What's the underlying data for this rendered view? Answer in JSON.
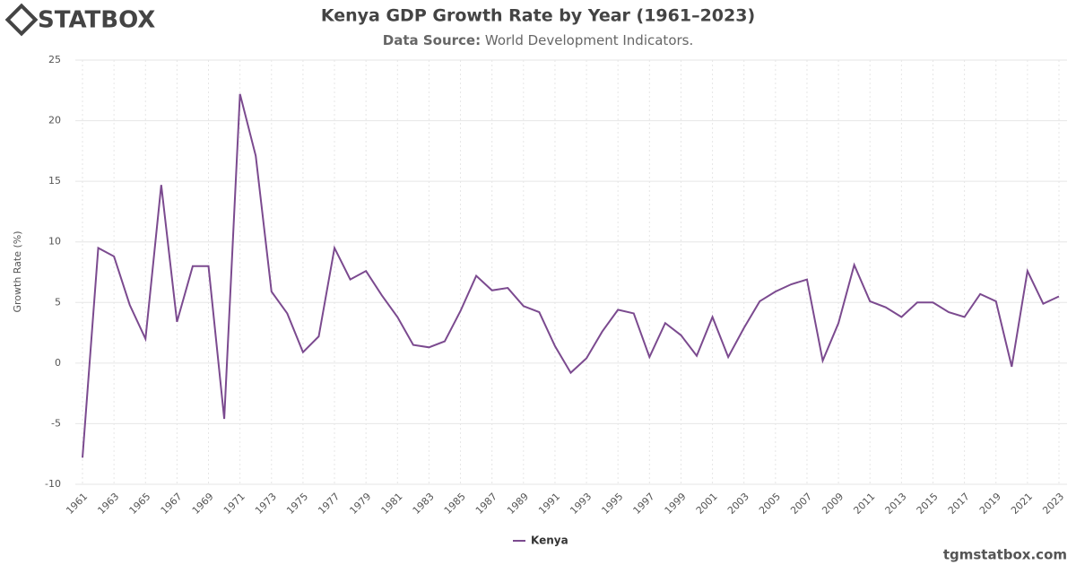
{
  "brand": "STATBOX",
  "watermark": "tgmstatbox.com",
  "chart_data": {
    "type": "line",
    "title": "Kenya GDP Growth Rate by Year (1961–2023)",
    "subtitle_label": "Data Source:",
    "subtitle": "World Development Indicators.",
    "y_label": "Growth Rate (%)",
    "x": [
      1961,
      1962,
      1963,
      1964,
      1965,
      1966,
      1967,
      1968,
      1969,
      1970,
      1971,
      1972,
      1973,
      1974,
      1975,
      1976,
      1977,
      1978,
      1979,
      1980,
      1981,
      1982,
      1983,
      1984,
      1985,
      1986,
      1987,
      1988,
      1989,
      1990,
      1991,
      1992,
      1993,
      1994,
      1995,
      1996,
      1997,
      1998,
      1999,
      2000,
      2001,
      2002,
      2003,
      2004,
      2005,
      2006,
      2007,
      2008,
      2009,
      2010,
      2011,
      2012,
      2013,
      2014,
      2015,
      2016,
      2017,
      2018,
      2019,
      2020,
      2021,
      2022,
      2023
    ],
    "series": [
      {
        "name": "Kenya",
        "color": "#7b4a8f",
        "values": [
          -7.8,
          9.5,
          8.8,
          4.8,
          2.0,
          14.7,
          3.4,
          8.0,
          8.0,
          -4.6,
          22.2,
          17.1,
          5.9,
          4.1,
          0.9,
          2.2,
          9.5,
          6.9,
          7.6,
          5.6,
          3.8,
          1.5,
          1.3,
          1.8,
          4.3,
          7.2,
          6.0,
          6.2,
          4.7,
          4.2,
          1.4,
          -0.8,
          0.4,
          2.6,
          4.4,
          4.1,
          0.5,
          3.3,
          2.3,
          0.6,
          3.8,
          0.5,
          2.9,
          5.1,
          5.9,
          6.5,
          6.9,
          0.2,
          3.3,
          8.1,
          5.1,
          4.6,
          3.8,
          5.0,
          5.0,
          4.2,
          3.8,
          5.7,
          5.1,
          -0.3,
          7.6,
          4.9,
          5.5
        ]
      }
    ],
    "xlim": [
      1961,
      2023
    ],
    "xticks": [
      1961,
      1963,
      1965,
      1967,
      1969,
      1971,
      1973,
      1975,
      1977,
      1979,
      1981,
      1983,
      1985,
      1987,
      1989,
      1991,
      1993,
      1995,
      1997,
      1999,
      2001,
      2003,
      2005,
      2007,
      2009,
      2011,
      2013,
      2015,
      2017,
      2019,
      2021,
      2023
    ],
    "ylim": [
      -10,
      25
    ],
    "yticks": [
      -10,
      -5,
      0,
      5,
      10,
      15,
      20,
      25
    ],
    "grid": true
  }
}
